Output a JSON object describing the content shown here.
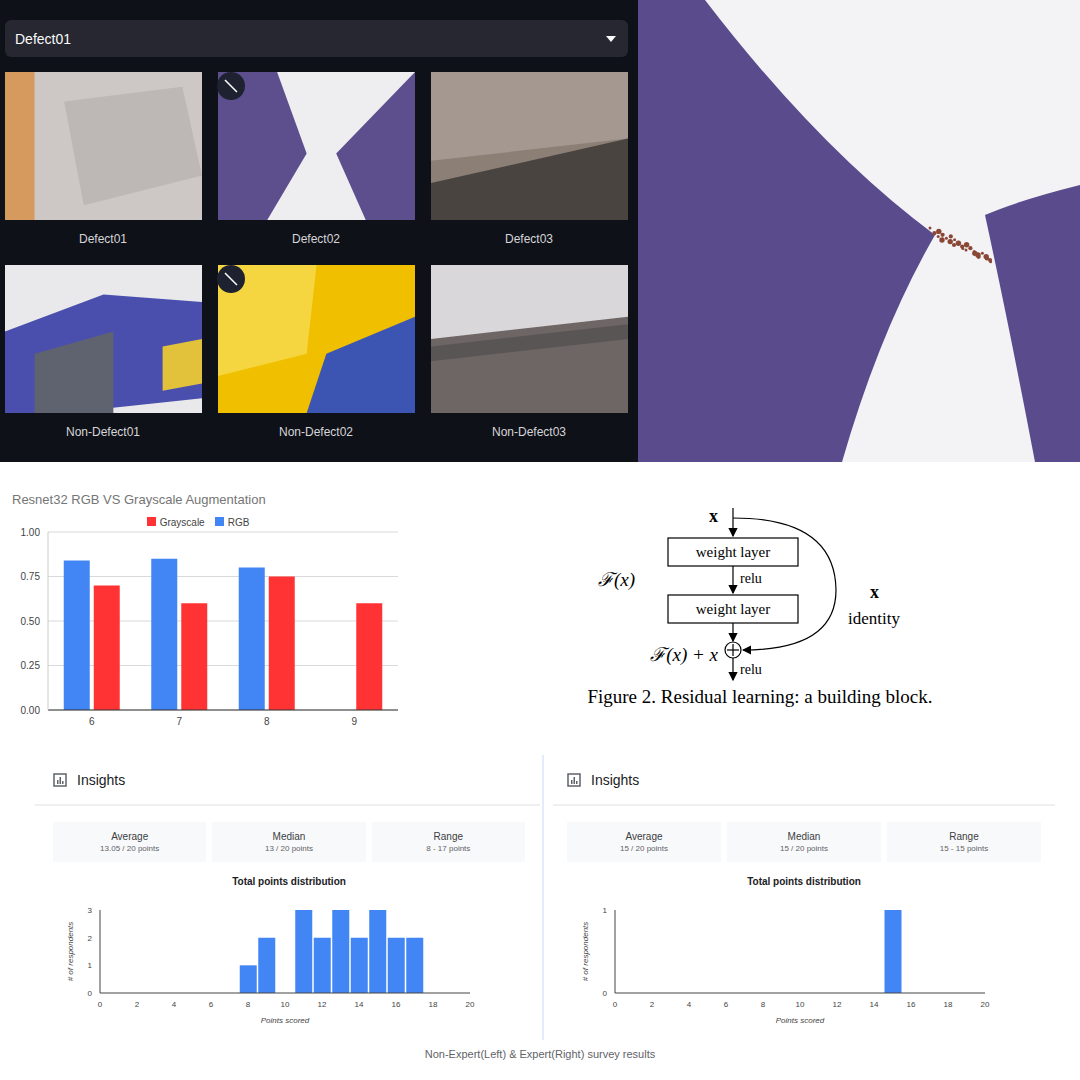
{
  "gallery": {
    "selected": "Defect01",
    "images": [
      "Defect01",
      "Defect02",
      "Defect03",
      "Non-Defect01",
      "Non-Defect02",
      "Non-Defect03"
    ]
  },
  "chart_data": [
    {
      "type": "bar",
      "title": "Resnet32 RGB VS Grayscale Augmentation",
      "categories": [
        "6",
        "7",
        "8",
        "9"
      ],
      "series": [
        {
          "name": "RGB",
          "color": "#4285f4",
          "values": [
            0.84,
            0.85,
            0.8,
            null
          ]
        },
        {
          "name": "Grayscale",
          "color": "#ff3333",
          "values": [
            0.7,
            0.6,
            0.75,
            0.6
          ]
        }
      ],
      "ylim": [
        0,
        1
      ],
      "yticks": [
        {
          "value": 0,
          "label": "0.00"
        },
        0.25,
        {
          "value": 0.5,
          "label": "0.50"
        },
        0.75,
        {
          "value": 1,
          "label": "1.00"
        }
      ],
      "grid": true,
      "legend": "top"
    },
    {
      "type": "bar",
      "header": "Insights",
      "stats": [
        {
          "label": "Average",
          "value": "13.05 / 20 points"
        },
        {
          "label": "Median",
          "value": "13 / 20 points"
        },
        {
          "label": "Range",
          "value": "8 - 17 points"
        }
      ],
      "title": "Total points distribution",
      "x_label": "Points scored",
      "y_label": "# of respondents",
      "x": [
        8,
        9,
        11,
        12,
        13,
        14,
        15,
        16,
        17
      ],
      "values": [
        1,
        2,
        3,
        2,
        3,
        2,
        3,
        2,
        2
      ],
      "color": "#4285f4",
      "xlim": [
        0,
        20
      ],
      "xticks": [
        0,
        2,
        4,
        6,
        8,
        10,
        12,
        14,
        16,
        18,
        20
      ],
      "ylim": [
        0,
        3
      ],
      "yticks": [
        0,
        1,
        2,
        3
      ],
      "grid": false
    },
    {
      "type": "bar",
      "header": "Insights",
      "stats": [
        {
          "label": "Average",
          "value": "15 / 20 points"
        },
        {
          "label": "Median",
          "value": "15 / 20 points"
        },
        {
          "label": "Range",
          "value": "15 - 15 points"
        }
      ],
      "title": "Total points distribution",
      "x_label": "Points scored",
      "y_label": "# of respondents",
      "x": [
        15
      ],
      "values": [
        1
      ],
      "color": "#4285f4",
      "xlim": [
        0,
        20
      ],
      "xticks": [
        0,
        2,
        4,
        6,
        8,
        10,
        12,
        14,
        16,
        18,
        20
      ],
      "ylim": [
        0,
        1
      ],
      "yticks": [
        0,
        1
      ],
      "grid": false
    }
  ],
  "diagram": {
    "input": "x",
    "layers": [
      "weight layer",
      "weight layer"
    ],
    "inner_activation": "relu",
    "function_label": "ℱ(x)",
    "shortcut_label": "x",
    "shortcut_name": "identity",
    "output_label": "ℱ(x) + x",
    "output_activation": "relu",
    "caption": "Figure 2. Residual learning: a building block."
  },
  "caption": "Non-Expert(Left) & Expert(Right) survey results"
}
